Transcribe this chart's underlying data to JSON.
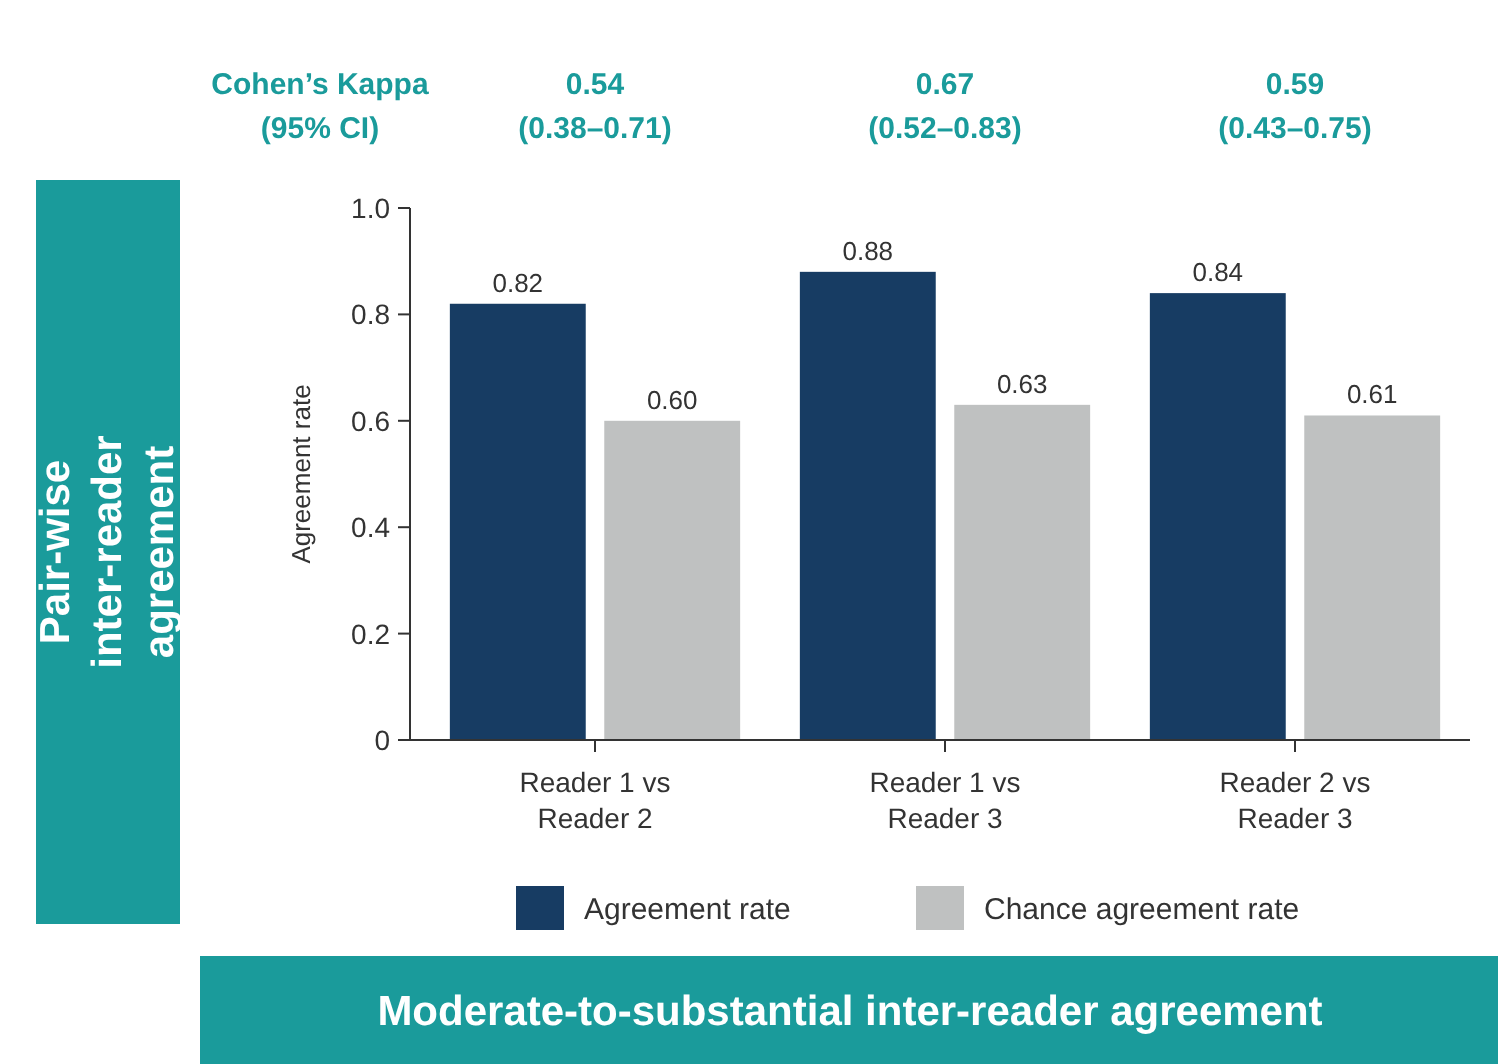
{
  "chart_data": {
    "type": "bar",
    "title": "Pair-wise inter-reader agreement",
    "subtitle": "Moderate-to-substantial inter-reader agreement",
    "ylabel": "Agreement rate",
    "categories": [
      "Reader 1 vs Reader 2",
      "Reader 1 vs Reader 3",
      "Reader 2 vs Reader 3"
    ],
    "series": [
      {
        "name": "Agreement rate",
        "color": "#173c63",
        "values": [
          0.82,
          0.88,
          0.84
        ],
        "value_labels": [
          "0.82",
          "0.88",
          "0.84"
        ]
      },
      {
        "name": "Chance agreement rate",
        "color": "#bfc1c1",
        "values": [
          0.6,
          0.63,
          0.61
        ],
        "value_labels": [
          "0.60",
          "0.63",
          "0.61"
        ]
      }
    ],
    "ylim": [
      0,
      1
    ],
    "yticks": [
      0,
      0.2,
      0.4,
      0.6,
      0.8,
      {
        "value": 1,
        "label": "1.0"
      }
    ],
    "annotations": [
      "Cohen’s Kappa\n(95% CI)",
      "0.54\n(0.38–0.71)",
      "0.67\n(0.52–0.83)",
      "0.59\n(0.43–0.75)"
    ],
    "grid": false,
    "legend": "bottom"
  }
}
